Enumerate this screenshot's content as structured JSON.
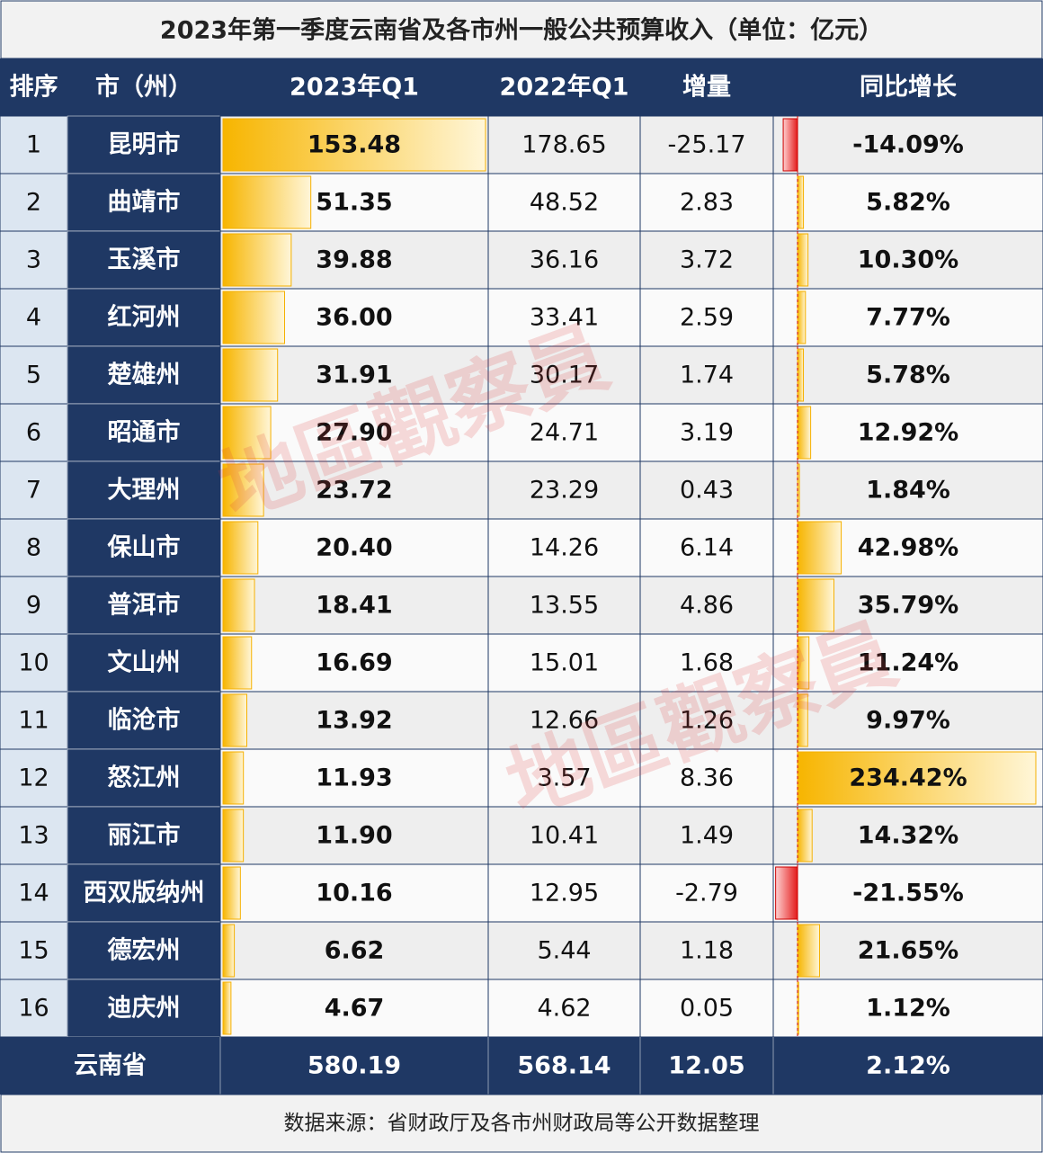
{
  "title": "2023年第一季度云南省及各市州一般公共预算收入（单位：亿元）",
  "header": [
    "排序",
    "市（州）",
    "2023年Q1",
    "2022年Q1",
    "增量",
    "同比增长"
  ],
  "rows": [
    [
      "1",
      "昆明市",
      "153.48",
      "178.65",
      "-25.17",
      "-14.09%"
    ],
    [
      "2",
      "曲靖市",
      "51.35",
      "48.52",
      "2.83",
      "5.82%"
    ],
    [
      "3",
      "玉溪市",
      "39.88",
      "36.16",
      "3.72",
      "10.30%"
    ],
    [
      "4",
      "红河州",
      "36.00",
      "33.41",
      "2.59",
      "7.77%"
    ],
    [
      "5",
      "楚雄州",
      "31.91",
      "30.17",
      "1.74",
      "5.78%"
    ],
    [
      "6",
      "昭通市",
      "27.90",
      "24.71",
      "3.19",
      "12.92%"
    ],
    [
      "7",
      "大理州",
      "23.72",
      "23.29",
      "0.43",
      "1.84%"
    ],
    [
      "8",
      "保山市",
      "20.40",
      "14.26",
      "6.14",
      "42.98%"
    ],
    [
      "9",
      "普洱市",
      "18.41",
      "13.55",
      "4.86",
      "35.79%"
    ],
    [
      "10",
      "文山州",
      "16.69",
      "15.01",
      "1.68",
      "11.24%"
    ],
    [
      "11",
      "临沧市",
      "13.92",
      "12.66",
      "1.26",
      "9.97%"
    ],
    [
      "12",
      "怒江州",
      "11.93",
      "3.57",
      "8.36",
      "234.42%"
    ],
    [
      "13",
      "丽江市",
      "11.90",
      "10.41",
      "1.49",
      "14.32%"
    ],
    [
      "14",
      "西双版纳州",
      "10.16",
      "12.95",
      "-2.79",
      "-21.55%"
    ],
    [
      "15",
      "德宏州",
      "6.62",
      "5.44",
      "1.18",
      "21.65%"
    ],
    [
      "16",
      "迪庆州",
      "4.67",
      "4.62",
      "0.05",
      "1.12%"
    ]
  ],
  "total": [
    "云南省",
    "580.19",
    "568.14",
    "12.05",
    "2.12%"
  ],
  "source": "数据来源：省财政厅及各市州财政局等公开数据整理",
  "watermark": "地區觀察員"
}
